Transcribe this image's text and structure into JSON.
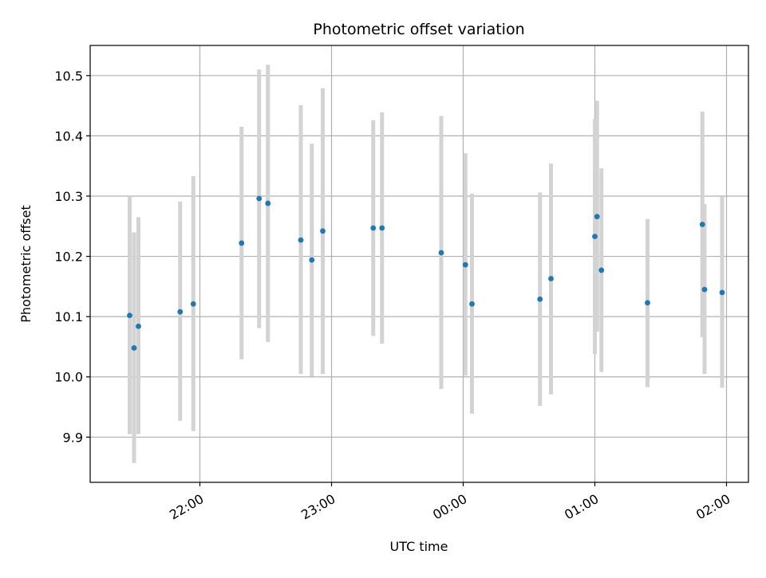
{
  "chart_data": {
    "type": "scatter",
    "title": "Photometric offset variation",
    "xlabel": "UTC time",
    "ylabel": "Photometric offset",
    "x_unit": "UTC",
    "xlim": [
      "21:10",
      "02:10"
    ],
    "ylim": [
      9.825,
      10.55
    ],
    "x_ticks": [
      "22:00",
      "23:00",
      "00:00",
      "01:00",
      "02:00"
    ],
    "y_ticks": [
      9.9,
      10.0,
      10.1,
      10.2,
      10.3,
      10.4,
      10.5
    ],
    "y_tick_labels": [
      "9.9",
      "10.0",
      "10.1",
      "10.2",
      "10.3",
      "10.4",
      "10.5"
    ],
    "grid": true,
    "colors": {
      "points": "#1f77b4",
      "errorbars": "#d3d3d3",
      "grid": "#b0b0b0"
    },
    "points": [
      {
        "x": "21:28",
        "y": 10.102,
        "ylow": 9.905,
        "yhigh": 10.3
      },
      {
        "x": "21:30",
        "y": 10.048,
        "ylow": 9.857,
        "yhigh": 10.24
      },
      {
        "x": "21:32",
        "y": 10.084,
        "ylow": 9.905,
        "yhigh": 10.265
      },
      {
        "x": "21:51",
        "y": 10.108,
        "ylow": 9.927,
        "yhigh": 10.291
      },
      {
        "x": "21:57",
        "y": 10.121,
        "ylow": 9.91,
        "yhigh": 10.333
      },
      {
        "x": "22:19",
        "y": 10.222,
        "ylow": 10.029,
        "yhigh": 10.415
      },
      {
        "x": "22:27",
        "y": 10.296,
        "ylow": 10.081,
        "yhigh": 10.51
      },
      {
        "x": "22:31",
        "y": 10.288,
        "ylow": 10.058,
        "yhigh": 10.518
      },
      {
        "x": "22:46",
        "y": 10.227,
        "ylow": 10.005,
        "yhigh": 10.451
      },
      {
        "x": "22:51",
        "y": 10.194,
        "ylow": 10.001,
        "yhigh": 10.387
      },
      {
        "x": "22:56",
        "y": 10.242,
        "ylow": 10.005,
        "yhigh": 10.479
      },
      {
        "x": "23:19",
        "y": 10.247,
        "ylow": 10.068,
        "yhigh": 10.426
      },
      {
        "x": "23:23",
        "y": 10.247,
        "ylow": 10.055,
        "yhigh": 10.439
      },
      {
        "x": "23:50",
        "y": 10.206,
        "ylow": 9.98,
        "yhigh": 10.433
      },
      {
        "x": "00:01",
        "y": 10.186,
        "ylow": 10.002,
        "yhigh": 10.371
      },
      {
        "x": "00:04",
        "y": 10.121,
        "ylow": 9.939,
        "yhigh": 10.304
      },
      {
        "x": "00:35",
        "y": 10.129,
        "ylow": 9.952,
        "yhigh": 10.306
      },
      {
        "x": "00:40",
        "y": 10.163,
        "ylow": 9.971,
        "yhigh": 10.354
      },
      {
        "x": "01:00",
        "y": 10.233,
        "ylow": 10.038,
        "yhigh": 10.428
      },
      {
        "x": "01:01",
        "y": 10.266,
        "ylow": 10.075,
        "yhigh": 10.458
      },
      {
        "x": "01:03",
        "y": 10.177,
        "ylow": 10.008,
        "yhigh": 10.346
      },
      {
        "x": "01:24",
        "y": 10.123,
        "ylow": 9.983,
        "yhigh": 10.262
      },
      {
        "x": "01:49",
        "y": 10.253,
        "ylow": 10.066,
        "yhigh": 10.44
      },
      {
        "x": "01:50",
        "y": 10.145,
        "ylow": 10.005,
        "yhigh": 10.287
      },
      {
        "x": "01:58",
        "y": 10.14,
        "ylow": 9.982,
        "yhigh": 10.299
      }
    ]
  }
}
